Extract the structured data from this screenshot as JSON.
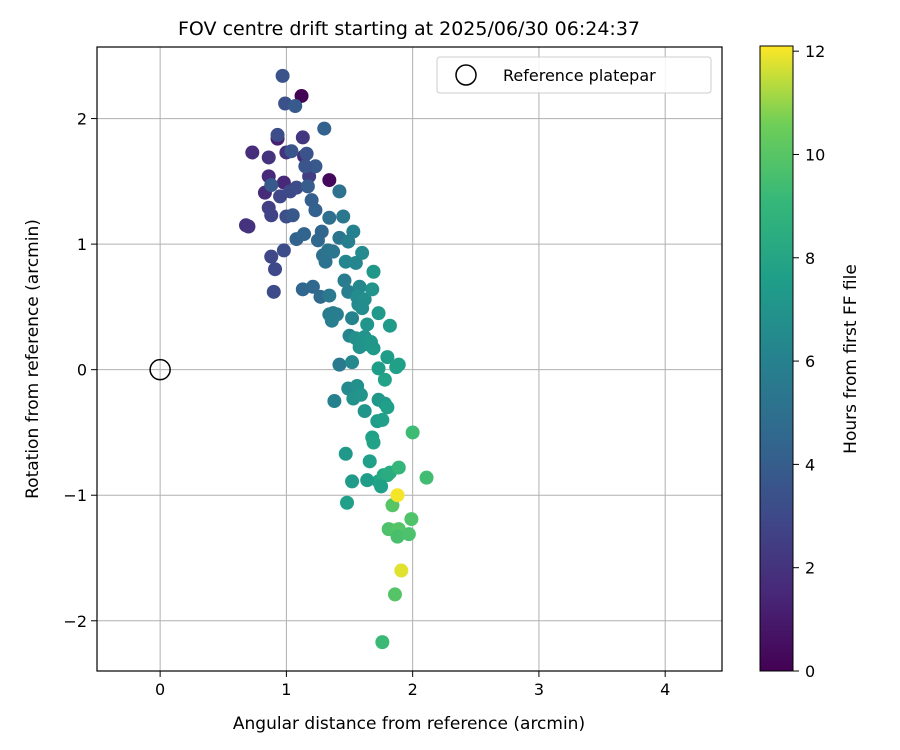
{
  "chart_data": {
    "type": "scatter",
    "title": "FOV centre drift starting at 2025/06/30 06:24:37",
    "xlabel": "Angular distance from reference (arcmin)",
    "ylabel": "Rotation from reference (arcmin)",
    "xlim": [
      -0.5,
      4.45
    ],
    "ylim": [
      -2.4,
      2.57
    ],
    "xticks": [
      0,
      1,
      2,
      3,
      4
    ],
    "yticks": [
      -2,
      -1,
      0,
      1,
      2
    ],
    "xtick_labels": [
      "0",
      "1",
      "2",
      "3",
      "4"
    ],
    "ytick_labels": [
      "−2",
      "−1",
      "0",
      "1",
      "2"
    ],
    "grid": true,
    "legend": {
      "placement": "top-right",
      "entries": [
        "Reference platepar"
      ]
    },
    "reference_point": {
      "name": "Reference platepar",
      "x": 0,
      "y": 0
    },
    "colorbar": {
      "label": "Hours from first FF file",
      "colormap": "viridis",
      "range": [
        0,
        12.1
      ],
      "ticks": [
        0,
        2,
        4,
        6,
        8,
        10,
        12
      ],
      "tick_labels": [
        "0",
        "2",
        "4",
        "6",
        "8",
        "10",
        "12"
      ]
    },
    "series": [
      {
        "points": [
          {
            "x": 1.12,
            "y": 2.18,
            "c": 0.1
          },
          {
            "x": 1.34,
            "y": 1.51,
            "c": 0.3
          },
          {
            "x": 0.93,
            "y": 1.84,
            "c": 1.2
          },
          {
            "x": 0.73,
            "y": 1.73,
            "c": 1.8
          },
          {
            "x": 0.86,
            "y": 1.69,
            "c": 2.0
          },
          {
            "x": 0.83,
            "y": 1.41,
            "c": 1.7
          },
          {
            "x": 0.86,
            "y": 1.54,
            "c": 1.6
          },
          {
            "x": 0.98,
            "y": 1.49,
            "c": 1.5
          },
          {
            "x": 1.14,
            "y": 1.7,
            "c": 1.6
          },
          {
            "x": 1.0,
            "y": 1.73,
            "c": 1.9
          },
          {
            "x": 1.13,
            "y": 1.85,
            "c": 2.2
          },
          {
            "x": 1.18,
            "y": 1.54,
            "c": 2.5
          },
          {
            "x": 0.68,
            "y": 1.15,
            "c": 1.9
          },
          {
            "x": 0.7,
            "y": 1.14,
            "c": 2.0
          },
          {
            "x": 0.86,
            "y": 1.29,
            "c": 2.6
          },
          {
            "x": 0.88,
            "y": 1.23,
            "c": 2.7
          },
          {
            "x": 0.95,
            "y": 1.38,
            "c": 2.9
          },
          {
            "x": 1.03,
            "y": 1.42,
            "c": 3.0
          },
          {
            "x": 1.08,
            "y": 1.45,
            "c": 3.1
          },
          {
            "x": 0.93,
            "y": 1.87,
            "c": 3.2
          },
          {
            "x": 0.88,
            "y": 0.9,
            "c": 2.9
          },
          {
            "x": 0.91,
            "y": 0.8,
            "c": 3.0
          },
          {
            "x": 0.9,
            "y": 0.62,
            "c": 3.1
          },
          {
            "x": 0.98,
            "y": 0.95,
            "c": 3.2
          },
          {
            "x": 1.0,
            "y": 1.22,
            "c": 3.3
          },
          {
            "x": 0.97,
            "y": 2.34,
            "c": 3.5
          },
          {
            "x": 0.99,
            "y": 2.12,
            "c": 3.4
          },
          {
            "x": 1.07,
            "y": 2.1,
            "c": 3.9
          },
          {
            "x": 1.04,
            "y": 1.74,
            "c": 3.6
          },
          {
            "x": 1.16,
            "y": 1.72,
            "c": 3.5
          },
          {
            "x": 1.23,
            "y": 1.62,
            "c": 3.8
          },
          {
            "x": 1.15,
            "y": 1.62,
            "c": 3.6
          },
          {
            "x": 1.05,
            "y": 1.23,
            "c": 3.7
          },
          {
            "x": 0.88,
            "y": 1.47,
            "c": 3.8
          },
          {
            "x": 1.3,
            "y": 1.92,
            "c": 4.3
          },
          {
            "x": 1.17,
            "y": 1.46,
            "c": 4.0
          },
          {
            "x": 1.2,
            "y": 1.35,
            "c": 4.1
          },
          {
            "x": 1.23,
            "y": 1.27,
            "c": 4.2
          },
          {
            "x": 1.08,
            "y": 1.04,
            "c": 4.3
          },
          {
            "x": 1.14,
            "y": 1.08,
            "c": 4.4
          },
          {
            "x": 1.13,
            "y": 0.64,
            "c": 4.5
          },
          {
            "x": 1.21,
            "y": 0.66,
            "c": 4.6
          },
          {
            "x": 1.27,
            "y": 0.58,
            "c": 4.7
          },
          {
            "x": 1.25,
            "y": 1.03,
            "c": 4.6
          },
          {
            "x": 1.28,
            "y": 1.1,
            "c": 4.5
          },
          {
            "x": 1.29,
            "y": 0.91,
            "c": 5.0
          },
          {
            "x": 1.31,
            "y": 0.86,
            "c": 5.1
          },
          {
            "x": 1.33,
            "y": 0.95,
            "c": 5.2
          },
          {
            "x": 1.37,
            "y": 0.94,
            "c": 5.3
          },
          {
            "x": 1.34,
            "y": 1.21,
            "c": 5.0
          },
          {
            "x": 1.42,
            "y": 1.42,
            "c": 5.1
          },
          {
            "x": 1.42,
            "y": 1.05,
            "c": 5.3
          },
          {
            "x": 1.45,
            "y": 1.22,
            "c": 5.4
          },
          {
            "x": 1.34,
            "y": 0.59,
            "c": 5.5
          },
          {
            "x": 1.37,
            "y": 0.45,
            "c": 5.6
          },
          {
            "x": 1.34,
            "y": 0.44,
            "c": 5.7
          },
          {
            "x": 1.4,
            "y": 0.44,
            "c": 5.8
          },
          {
            "x": 1.36,
            "y": 0.39,
            "c": 5.9
          },
          {
            "x": 1.42,
            "y": 0.04,
            "c": 5.6
          },
          {
            "x": 1.38,
            "y": -0.25,
            "c": 6.0
          },
          {
            "x": 1.46,
            "y": 0.71,
            "c": 5.7
          },
          {
            "x": 1.49,
            "y": 0.62,
            "c": 5.8
          },
          {
            "x": 1.52,
            "y": 0.41,
            "c": 6.1
          },
          {
            "x": 1.5,
            "y": 0.27,
            "c": 6.2
          },
          {
            "x": 1.53,
            "y": 1.1,
            "c": 6.0
          },
          {
            "x": 1.49,
            "y": 1.02,
            "c": 5.9
          },
          {
            "x": 1.47,
            "y": 0.86,
            "c": 6.2
          },
          {
            "x": 1.55,
            "y": 0.85,
            "c": 6.3
          },
          {
            "x": 1.6,
            "y": 0.93,
            "c": 6.5
          },
          {
            "x": 1.58,
            "y": 0.66,
            "c": 6.4
          },
          {
            "x": 1.56,
            "y": 0.58,
            "c": 6.6
          },
          {
            "x": 1.57,
            "y": 0.52,
            "c": 6.5
          },
          {
            "x": 1.62,
            "y": 0.56,
            "c": 6.7
          },
          {
            "x": 1.6,
            "y": 0.49,
            "c": 6.6
          },
          {
            "x": 1.55,
            "y": 0.25,
            "c": 6.8
          },
          {
            "x": 1.58,
            "y": 0.18,
            "c": 6.9
          },
          {
            "x": 1.62,
            "y": 0.26,
            "c": 7.0
          },
          {
            "x": 1.65,
            "y": 0.2,
            "c": 7.1
          },
          {
            "x": 1.68,
            "y": 0.64,
            "c": 7.0
          },
          {
            "x": 1.69,
            "y": 0.78,
            "c": 7.2
          },
          {
            "x": 1.73,
            "y": 0.45,
            "c": 7.3
          },
          {
            "x": 1.69,
            "y": 0.17,
            "c": 7.3
          },
          {
            "x": 1.64,
            "y": 0.36,
            "c": 7.1
          },
          {
            "x": 1.67,
            "y": 0.22,
            "c": 7.2
          },
          {
            "x": 1.82,
            "y": 0.35,
            "c": 7.4
          },
          {
            "x": 1.8,
            "y": 0.1,
            "c": 7.5
          },
          {
            "x": 1.87,
            "y": 0.02,
            "c": 7.6
          },
          {
            "x": 1.89,
            "y": 0.04,
            "c": 7.7
          },
          {
            "x": 1.78,
            "y": -0.08,
            "c": 7.8
          },
          {
            "x": 1.73,
            "y": 0.01,
            "c": 7.5
          },
          {
            "x": 1.52,
            "y": 0.06,
            "c": 6.4
          },
          {
            "x": 1.49,
            "y": -0.15,
            "c": 6.5
          },
          {
            "x": 1.56,
            "y": -0.13,
            "c": 6.8
          },
          {
            "x": 1.53,
            "y": -0.23,
            "c": 6.9
          },
          {
            "x": 1.59,
            "y": -0.2,
            "c": 7.0
          },
          {
            "x": 1.62,
            "y": -0.33,
            "c": 7.1
          },
          {
            "x": 1.73,
            "y": -0.24,
            "c": 7.2
          },
          {
            "x": 1.78,
            "y": -0.27,
            "c": 7.4
          },
          {
            "x": 1.8,
            "y": -0.3,
            "c": 7.6
          },
          {
            "x": 1.72,
            "y": -0.41,
            "c": 7.5
          },
          {
            "x": 1.76,
            "y": -0.4,
            "c": 7.6
          },
          {
            "x": 1.68,
            "y": -0.54,
            "c": 7.7
          },
          {
            "x": 1.69,
            "y": -0.58,
            "c": 7.8
          },
          {
            "x": 1.47,
            "y": -0.67,
            "c": 7.3
          },
          {
            "x": 1.66,
            "y": -0.73,
            "c": 7.6
          },
          {
            "x": 1.73,
            "y": -0.89,
            "c": 7.9
          },
          {
            "x": 1.77,
            "y": -0.84,
            "c": 8.1
          },
          {
            "x": 1.8,
            "y": -0.84,
            "c": 8.3
          },
          {
            "x": 1.82,
            "y": -0.82,
            "c": 8.4
          },
          {
            "x": 1.52,
            "y": -0.89,
            "c": 7.4
          },
          {
            "x": 1.64,
            "y": -0.88,
            "c": 7.5
          },
          {
            "x": 1.75,
            "y": -0.93,
            "c": 7.7
          },
          {
            "x": 1.48,
            "y": -1.06,
            "c": 7.6
          },
          {
            "x": 1.89,
            "y": -0.78,
            "c": 9.0
          },
          {
            "x": 2.0,
            "y": -0.5,
            "c": 9.3
          },
          {
            "x": 2.11,
            "y": -0.86,
            "c": 9.4
          },
          {
            "x": 1.84,
            "y": -1.08,
            "c": 10.0
          },
          {
            "x": 1.88,
            "y": -1.0,
            "c": 12.0
          },
          {
            "x": 1.99,
            "y": -1.19,
            "c": 9.8
          },
          {
            "x": 1.81,
            "y": -1.27,
            "c": 9.7
          },
          {
            "x": 1.86,
            "y": -1.28,
            "c": 9.8
          },
          {
            "x": 1.89,
            "y": -1.27,
            "c": 9.9
          },
          {
            "x": 1.88,
            "y": -1.33,
            "c": 9.6
          },
          {
            "x": 1.97,
            "y": -1.31,
            "c": 9.7
          },
          {
            "x": 1.91,
            "y": -1.6,
            "c": 11.8
          },
          {
            "x": 1.86,
            "y": -1.79,
            "c": 9.9
          },
          {
            "x": 1.76,
            "y": -2.17,
            "c": 9.2
          }
        ]
      }
    ]
  }
}
